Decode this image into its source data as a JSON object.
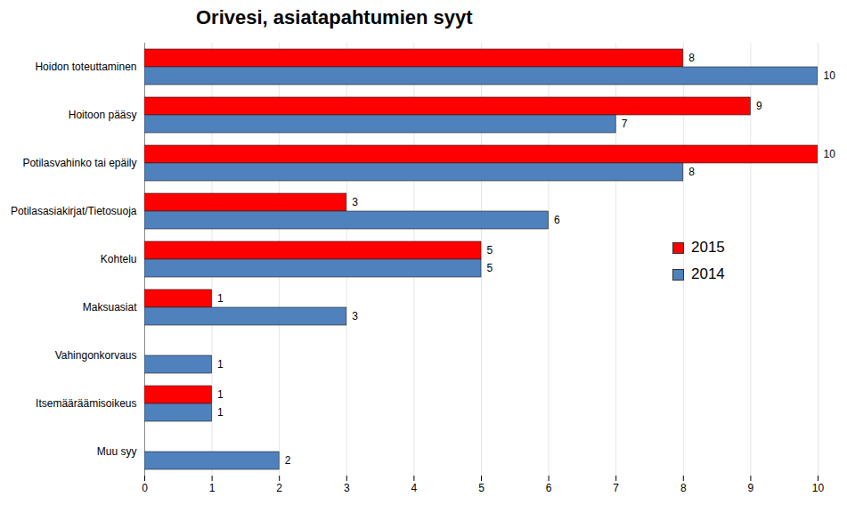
{
  "chart_data": {
    "type": "bar",
    "orientation": "horizontal",
    "title": "Orivesi, asiatapahtumien syyt",
    "categories": [
      "Hoidon toteuttaminen",
      "Hoitoon pääsy",
      "Potilasvahinko tai epäily",
      "Potilasasiakirjat/Tietosuoja",
      "Kohtelu",
      "Maksuasiat",
      "Vahingonkorvaus",
      "Itsemääräämisoikeus",
      "Muu syy"
    ],
    "series": [
      {
        "name": "2015",
        "color": "#ff0000",
        "values": [
          8,
          9,
          10,
          3,
          5,
          1,
          null,
          1,
          null
        ]
      },
      {
        "name": "2014",
        "color": "#4f81bd",
        "values": [
          10,
          7,
          8,
          6,
          5,
          3,
          1,
          1,
          2
        ]
      }
    ],
    "xlim": [
      0,
      10
    ],
    "xticks": [
      0,
      1,
      2,
      3,
      4,
      5,
      6,
      7,
      8,
      9,
      10
    ],
    "grid": true,
    "legend": "right",
    "data_labels": true
  }
}
